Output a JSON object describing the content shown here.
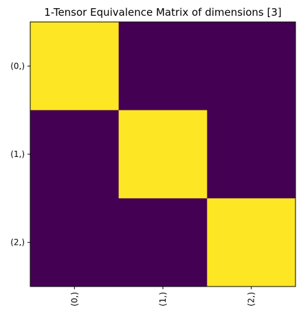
{
  "chart_data": {
    "type": "heatmap",
    "title": "1-Tensor Equivalence Matrix of dimensions [3]",
    "xlabel": "",
    "ylabel": "",
    "x_tick_labels": [
      "(0,)",
      "(1,)",
      "(2,)"
    ],
    "y_tick_labels": [
      "(0,)",
      "(1,)",
      "(2,)"
    ],
    "values": [
      [
        1,
        0,
        0
      ],
      [
        0,
        1,
        0
      ],
      [
        0,
        0,
        1
      ]
    ],
    "value_range": [
      0,
      1
    ],
    "colormap": "viridis",
    "colors": {
      "low": "#440154",
      "high": "#fde725"
    },
    "grid": false,
    "legend": "none",
    "x_tick_rotation": "vertical"
  }
}
